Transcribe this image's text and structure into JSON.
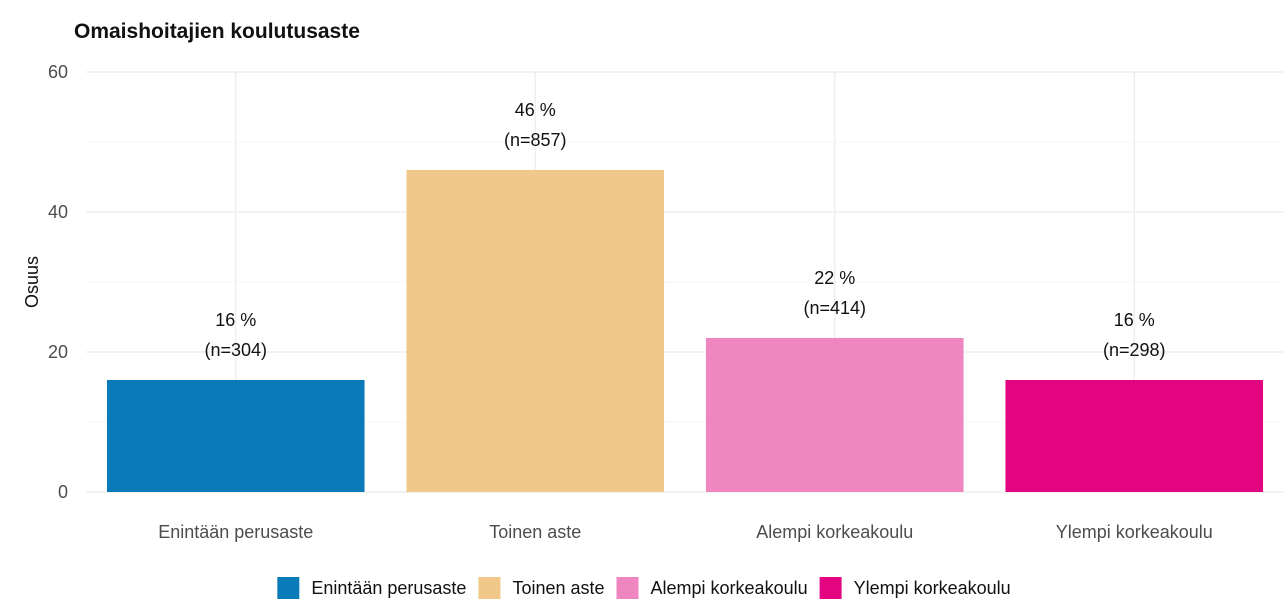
{
  "chart_data": {
    "type": "bar",
    "title": "Omaishoitajien koulutusaste",
    "xlabel": "",
    "ylabel": "Osuus",
    "ylim": [
      0,
      60
    ],
    "yticks": [
      0,
      20,
      40,
      60
    ],
    "grid": true,
    "legend_position": "bottom",
    "categories": [
      "Enintään perusaste",
      "Toinen aste",
      "Alempi korkeakoulu",
      "Ylempi korkeakoulu"
    ],
    "values": [
      16,
      46,
      22,
      16
    ],
    "labels_percent": [
      "16 %",
      "46 %",
      "22 %",
      "16 %"
    ],
    "labels_n": [
      "(n=304)",
      "(n=857)",
      "(n=414)",
      "(n=298)"
    ],
    "colors": [
      "#0a7bb8",
      "#f0c98a",
      "#ef86c0",
      "#e3057f"
    ],
    "legend": [
      "Enintään perusaste",
      "Toinen aste",
      "Alempi korkeakoulu",
      "Ylempi korkeakoulu"
    ]
  }
}
